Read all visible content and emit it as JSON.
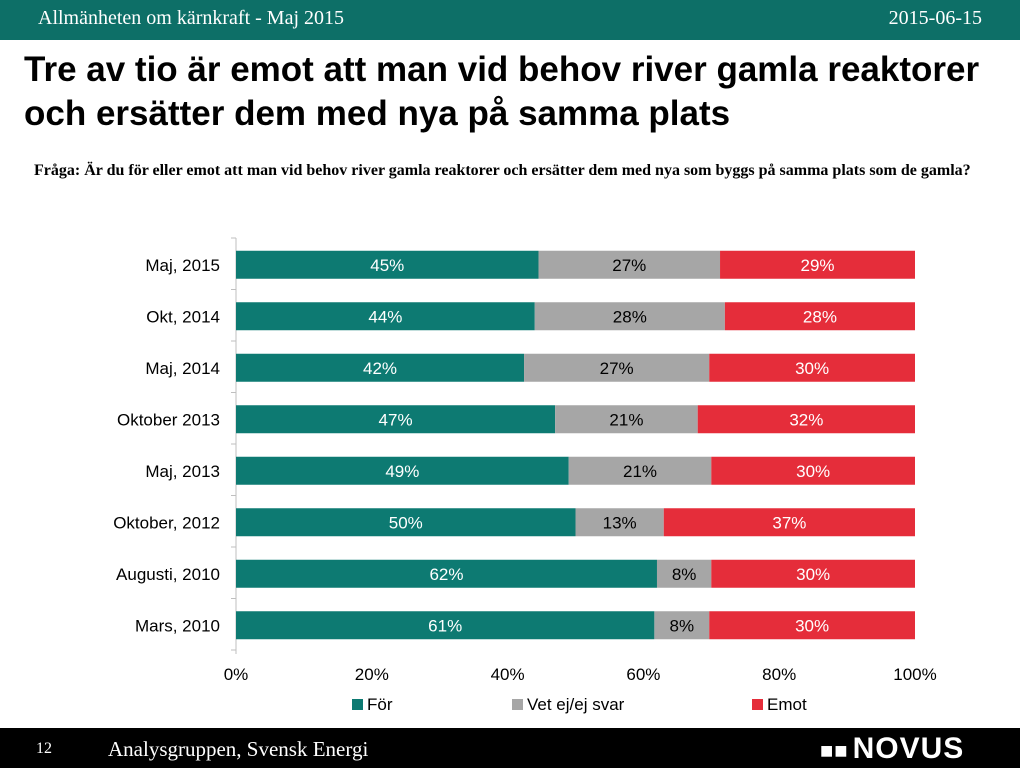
{
  "header": {
    "left_text": "Allmänheten om kärnkraft - Maj 2015",
    "right_text": "2015-06-15"
  },
  "slide": {
    "title": "Tre av tio är emot att man vid behov river gamla reaktorer och ersätter dem med nya på samma plats",
    "question": "Fråga: Är du för eller emot att man vid behov river gamla reaktorer och ersätter dem med nya som byggs på samma plats som de gamla?"
  },
  "chart_data": {
    "type": "bar",
    "orientation": "horizontal",
    "stacked": true,
    "categories": [
      "Maj, 2015",
      "Okt, 2014",
      "Maj, 2014",
      "Oktober 2013",
      "Maj, 2013",
      "Oktober, 2012",
      "Augusti, 2010",
      "Mars, 2010"
    ],
    "series": [
      {
        "name": "För",
        "color": "#0d7a72",
        "values": [
          45,
          44,
          42,
          47,
          49,
          50,
          62,
          61
        ]
      },
      {
        "name": "Vet ej/ej svar",
        "color": "#a6a6a6",
        "values": [
          27,
          28,
          27,
          21,
          21,
          13,
          8,
          8
        ]
      },
      {
        "name": "Emot",
        "color": "#e52d3a",
        "values": [
          29,
          28,
          30,
          32,
          30,
          37,
          30,
          30
        ]
      }
    ],
    "xlim": [
      0,
      100
    ],
    "xticks": [
      "0%",
      "20%",
      "40%",
      "60%",
      "80%",
      "100%"
    ],
    "value_suffix": "%",
    "legend_position": "bottom"
  },
  "footer": {
    "page_number": "12",
    "organization": "Analysgruppen, Svensk Energi",
    "logo_text": "NOVUS",
    "logo_dots": "■■"
  }
}
